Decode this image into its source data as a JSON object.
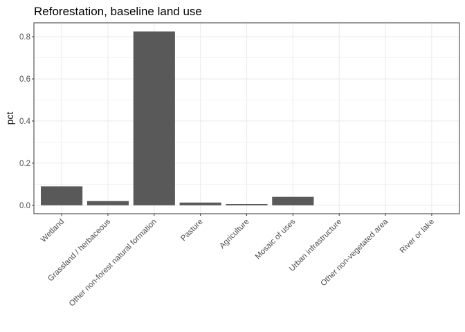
{
  "chart_data": {
    "type": "bar",
    "title": "Reforestation, baseline land use",
    "xlabel": "",
    "ylabel": "pct",
    "categories": [
      "Wetland",
      "Grassland / herbaceous",
      "Other non-forest natural formation",
      "Pasture",
      "Agriculture",
      "Mosaic of uses",
      "Urban infrastructure",
      "Other non-vegetated area",
      "River or lake"
    ],
    "values": [
      0.09,
      0.02,
      0.825,
      0.013,
      0.006,
      0.04,
      0,
      0,
      0
    ],
    "ylim": [
      -0.04,
      0.866
    ],
    "yticks": [
      0.0,
      0.2,
      0.4,
      0.6,
      0.8
    ],
    "ytick_labels": [
      "0.0",
      "0.2",
      "0.4",
      "0.6",
      "0.8"
    ],
    "grid": true,
    "bar_color": "#595959",
    "grid_color": "#ebebeb",
    "panel_border_color": "#333333"
  }
}
